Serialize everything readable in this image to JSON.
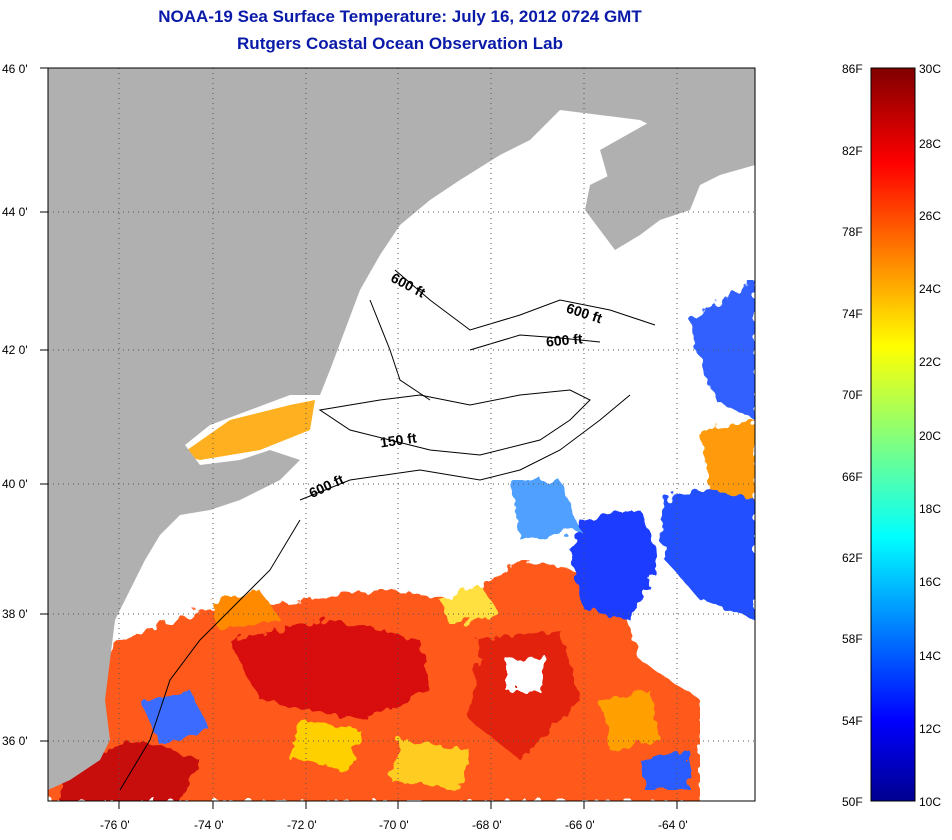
{
  "title": {
    "line1": "NOAA-19 Sea Surface Temperature:  July 16, 2012 0724 GMT",
    "line2": "Rutgers Coastal Ocean Observation Lab"
  },
  "map": {
    "lat_labels": [
      "46 0'",
      "44 0'",
      "42 0'",
      "40 0'",
      "38 0'",
      "36 0'"
    ],
    "lon_labels": [
      "-76 0'",
      "-74 0'",
      "-72 0'",
      "-70 0'",
      "-68 0'",
      "-66 0'",
      "-64 0'"
    ],
    "contours": [
      "600 ft",
      "600 ft",
      "600 ft",
      "150 ft",
      "600 ft"
    ],
    "colors": {
      "land": "#b0b0b0",
      "cloud": "#ffffff"
    }
  },
  "colorbar": {
    "fahrenheit": [
      "86F",
      "82F",
      "78F",
      "74F",
      "70F",
      "66F",
      "62F",
      "58F",
      "54F",
      "50F"
    ],
    "celsius": [
      "30C",
      "28C",
      "26C",
      "24C",
      "22C",
      "20C",
      "18C",
      "16C",
      "14C",
      "12C",
      "10C"
    ]
  }
}
